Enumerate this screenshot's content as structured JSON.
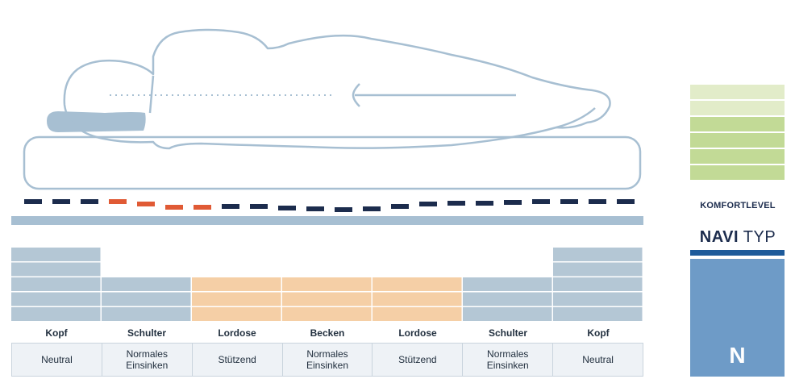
{
  "colors": {
    "outline": "#a7bfd2",
    "firm_zone": "#b4c7d5",
    "soft_zone": "#f5cfa6",
    "dash_dark": "#1c2c4d",
    "dash_accent": "#e05a35",
    "comfort_light": "#e2ecc9",
    "comfort_dark": "#c2da96",
    "navi_panel": "#6e9bc7",
    "navi_bar": "#1d5a9a"
  },
  "zones": [
    {
      "label": "Kopf",
      "description": "Neutral",
      "support_rows": 5,
      "tone": "firm"
    },
    {
      "label": "Schulter",
      "description": "Normales\nEinsinken",
      "support_rows": 3,
      "tone": "firm"
    },
    {
      "label": "Lordose",
      "description": "Stützend",
      "support_rows": 3,
      "tone": "soft"
    },
    {
      "label": "Becken",
      "description": "Normales\nEinsinken",
      "support_rows": 3,
      "tone": "soft"
    },
    {
      "label": "Lordose",
      "description": "Stützend",
      "support_rows": 3,
      "tone": "soft"
    },
    {
      "label": "Schulter",
      "description": "Normales\nEinsinken",
      "support_rows": 3,
      "tone": "firm"
    },
    {
      "label": "Kopf",
      "description": "Neutral",
      "support_rows": 5,
      "tone": "firm"
    }
  ],
  "comfort_level": {
    "label": "KOMFORTLEVEL",
    "total_segments": 6,
    "filled_segments": 4
  },
  "navi": {
    "title_bold": "NAVI",
    "title_light": "TYP",
    "letter": "N",
    "icon": "person-icon"
  }
}
